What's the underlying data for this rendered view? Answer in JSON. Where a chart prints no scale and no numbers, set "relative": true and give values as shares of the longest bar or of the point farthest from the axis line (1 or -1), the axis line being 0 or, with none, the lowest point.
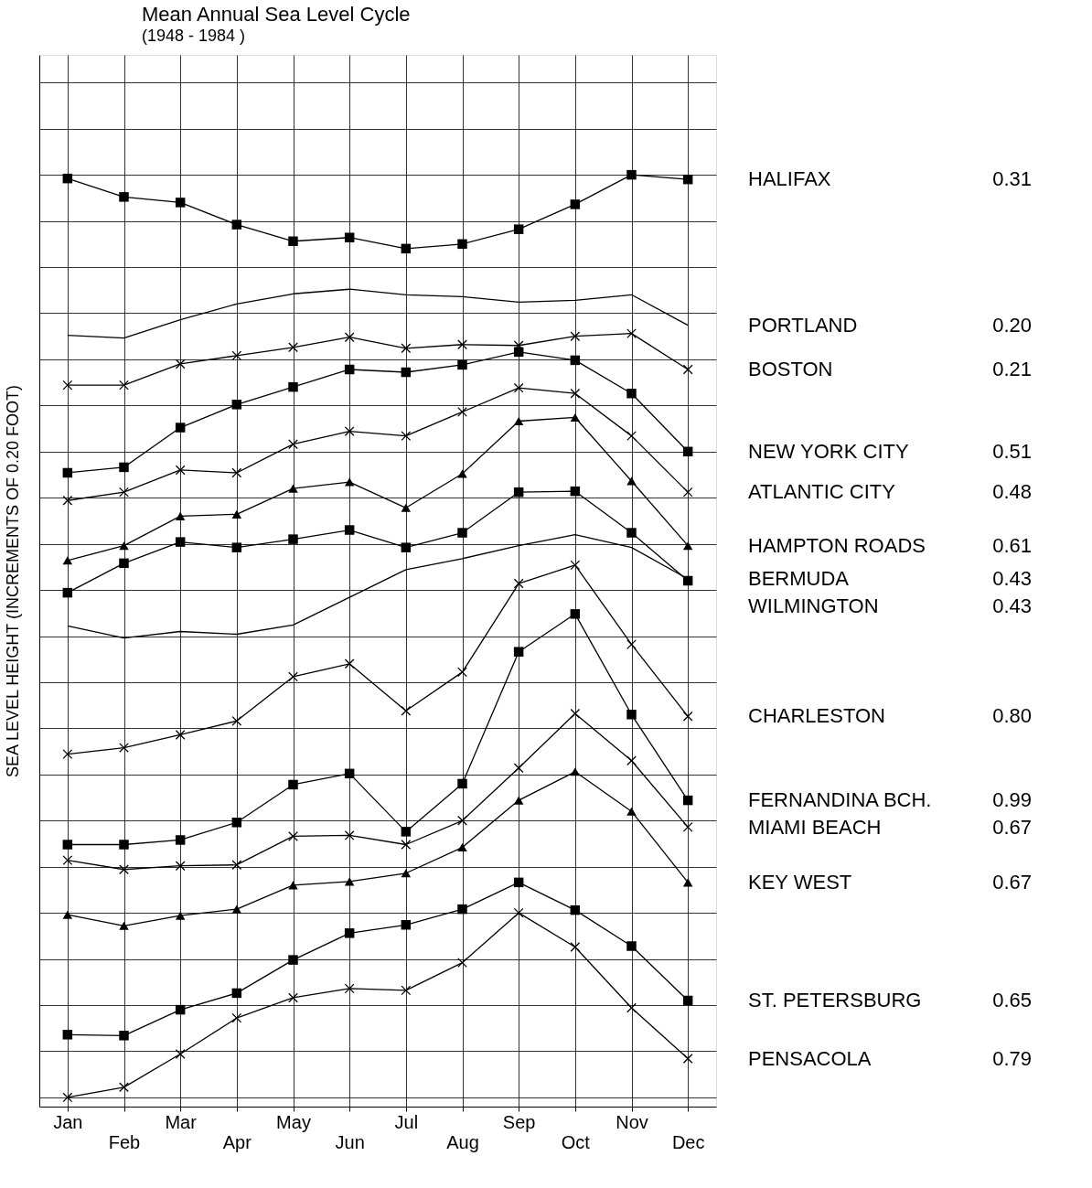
{
  "chart_data": {
    "type": "line",
    "title": "Mean Annual Sea Level Cycle",
    "subtitle": "(1948 - 1984 )",
    "ylabel": "SEA LEVEL HEIGHT (INCREMENTS OF 0.20 FOOT)",
    "relative": true,
    "grid": true,
    "line_style": "solid",
    "categories": [
      "Jan",
      "Feb",
      "Mar",
      "Apr",
      "May",
      "Jun",
      "Jul",
      "Aug",
      "Sep",
      "Oct",
      "Nov",
      "Dec"
    ],
    "series": [
      {
        "name": "HALIFAX",
        "color": "#000000",
        "marker": "square",
        "values": [
          0.996,
          0.976,
          0.97,
          0.946,
          0.928,
          0.932,
          0.92,
          0.925,
          0.941,
          0.968,
          1.0,
          0.995
        ]
      },
      {
        "name": "PORTLAND",
        "color": "#000000",
        "marker": "none",
        "values": [
          0.826,
          0.823,
          0.843,
          0.86,
          0.871,
          0.876,
          0.87,
          0.868,
          0.862,
          0.864,
          0.87,
          0.837
        ]
      },
      {
        "name": "BOSTON",
        "color": "#000000",
        "marker": "cross",
        "values": [
          0.772,
          0.772,
          0.795,
          0.804,
          0.813,
          0.824,
          0.812,
          0.816,
          0.815,
          0.825,
          0.828,
          0.789
        ]
      },
      {
        "name": "NEW YORK CITY",
        "color": "#000000",
        "marker": "square",
        "values": [
          0.677,
          0.683,
          0.726,
          0.751,
          0.77,
          0.789,
          0.786,
          0.794,
          0.808,
          0.799,
          0.763,
          0.7
        ]
      },
      {
        "name": "ATLANTIC CITY",
        "color": "#000000",
        "marker": "cross",
        "values": [
          0.647,
          0.656,
          0.68,
          0.677,
          0.708,
          0.722,
          0.717,
          0.743,
          0.769,
          0.763,
          0.717,
          0.656
        ]
      },
      {
        "name": "HAMPTON ROADS",
        "color": "#000000",
        "marker": "triangle",
        "values": [
          0.582,
          0.598,
          0.63,
          0.632,
          0.66,
          0.667,
          0.639,
          0.676,
          0.733,
          0.737,
          0.668,
          0.598
        ]
      },
      {
        "name": "WILMINGTON",
        "color": "#000000",
        "marker": "square",
        "values": [
          0.547,
          0.579,
          0.602,
          0.596,
          0.605,
          0.615,
          0.596,
          0.612,
          0.656,
          0.657,
          0.612,
          0.56
        ]
      },
      {
        "name": "BERMUDA",
        "color": "#000000",
        "marker": "none",
        "values": [
          0.511,
          0.498,
          0.505,
          0.502,
          0.512,
          0.542,
          0.572,
          0.584,
          0.598,
          0.61,
          0.596,
          0.562
        ]
      },
      {
        "name": "CHARLESTON",
        "color": "#000000",
        "marker": "cross",
        "values": [
          0.372,
          0.379,
          0.393,
          0.408,
          0.456,
          0.47,
          0.419,
          0.461,
          0.557,
          0.577,
          0.491,
          0.413
        ]
      },
      {
        "name": "FERNANDINA BCH.",
        "color": "#000000",
        "marker": "square",
        "values": [
          0.274,
          0.274,
          0.279,
          0.298,
          0.339,
          0.351,
          0.288,
          0.34,
          0.483,
          0.524,
          0.415,
          0.322
        ]
      },
      {
        "name": "MIAMI BEACH",
        "color": "#000000",
        "marker": "cross",
        "values": [
          0.257,
          0.247,
          0.251,
          0.252,
          0.283,
          0.284,
          0.274,
          0.3,
          0.357,
          0.416,
          0.365,
          0.293
        ]
      },
      {
        "name": "KEY WEST",
        "color": "#000000",
        "marker": "triangle",
        "values": [
          0.198,
          0.186,
          0.197,
          0.204,
          0.23,
          0.234,
          0.243,
          0.271,
          0.322,
          0.353,
          0.31,
          0.233
        ]
      },
      {
        "name": "ST. PETERSBURG",
        "color": "#000000",
        "marker": "square",
        "values": [
          0.068,
          0.067,
          0.095,
          0.113,
          0.149,
          0.178,
          0.187,
          0.204,
          0.233,
          0.203,
          0.164,
          0.105
        ]
      },
      {
        "name": "PENSACOLA",
        "color": "#000000",
        "marker": "cross",
        "values": [
          0,
          0.011,
          0.047,
          0.086,
          0.108,
          0.118,
          0.116,
          0.146,
          0.2,
          0.163,
          0.097,
          0.042
        ]
      }
    ],
    "annotations": [
      "0.31",
      "0.20",
      "0.21",
      "0.51",
      "0.48",
      "0.61",
      "0.43",
      "0.43",
      "0.80",
      "0.99",
      "0.67",
      "0.67",
      "0.65",
      "0.79"
    ]
  }
}
